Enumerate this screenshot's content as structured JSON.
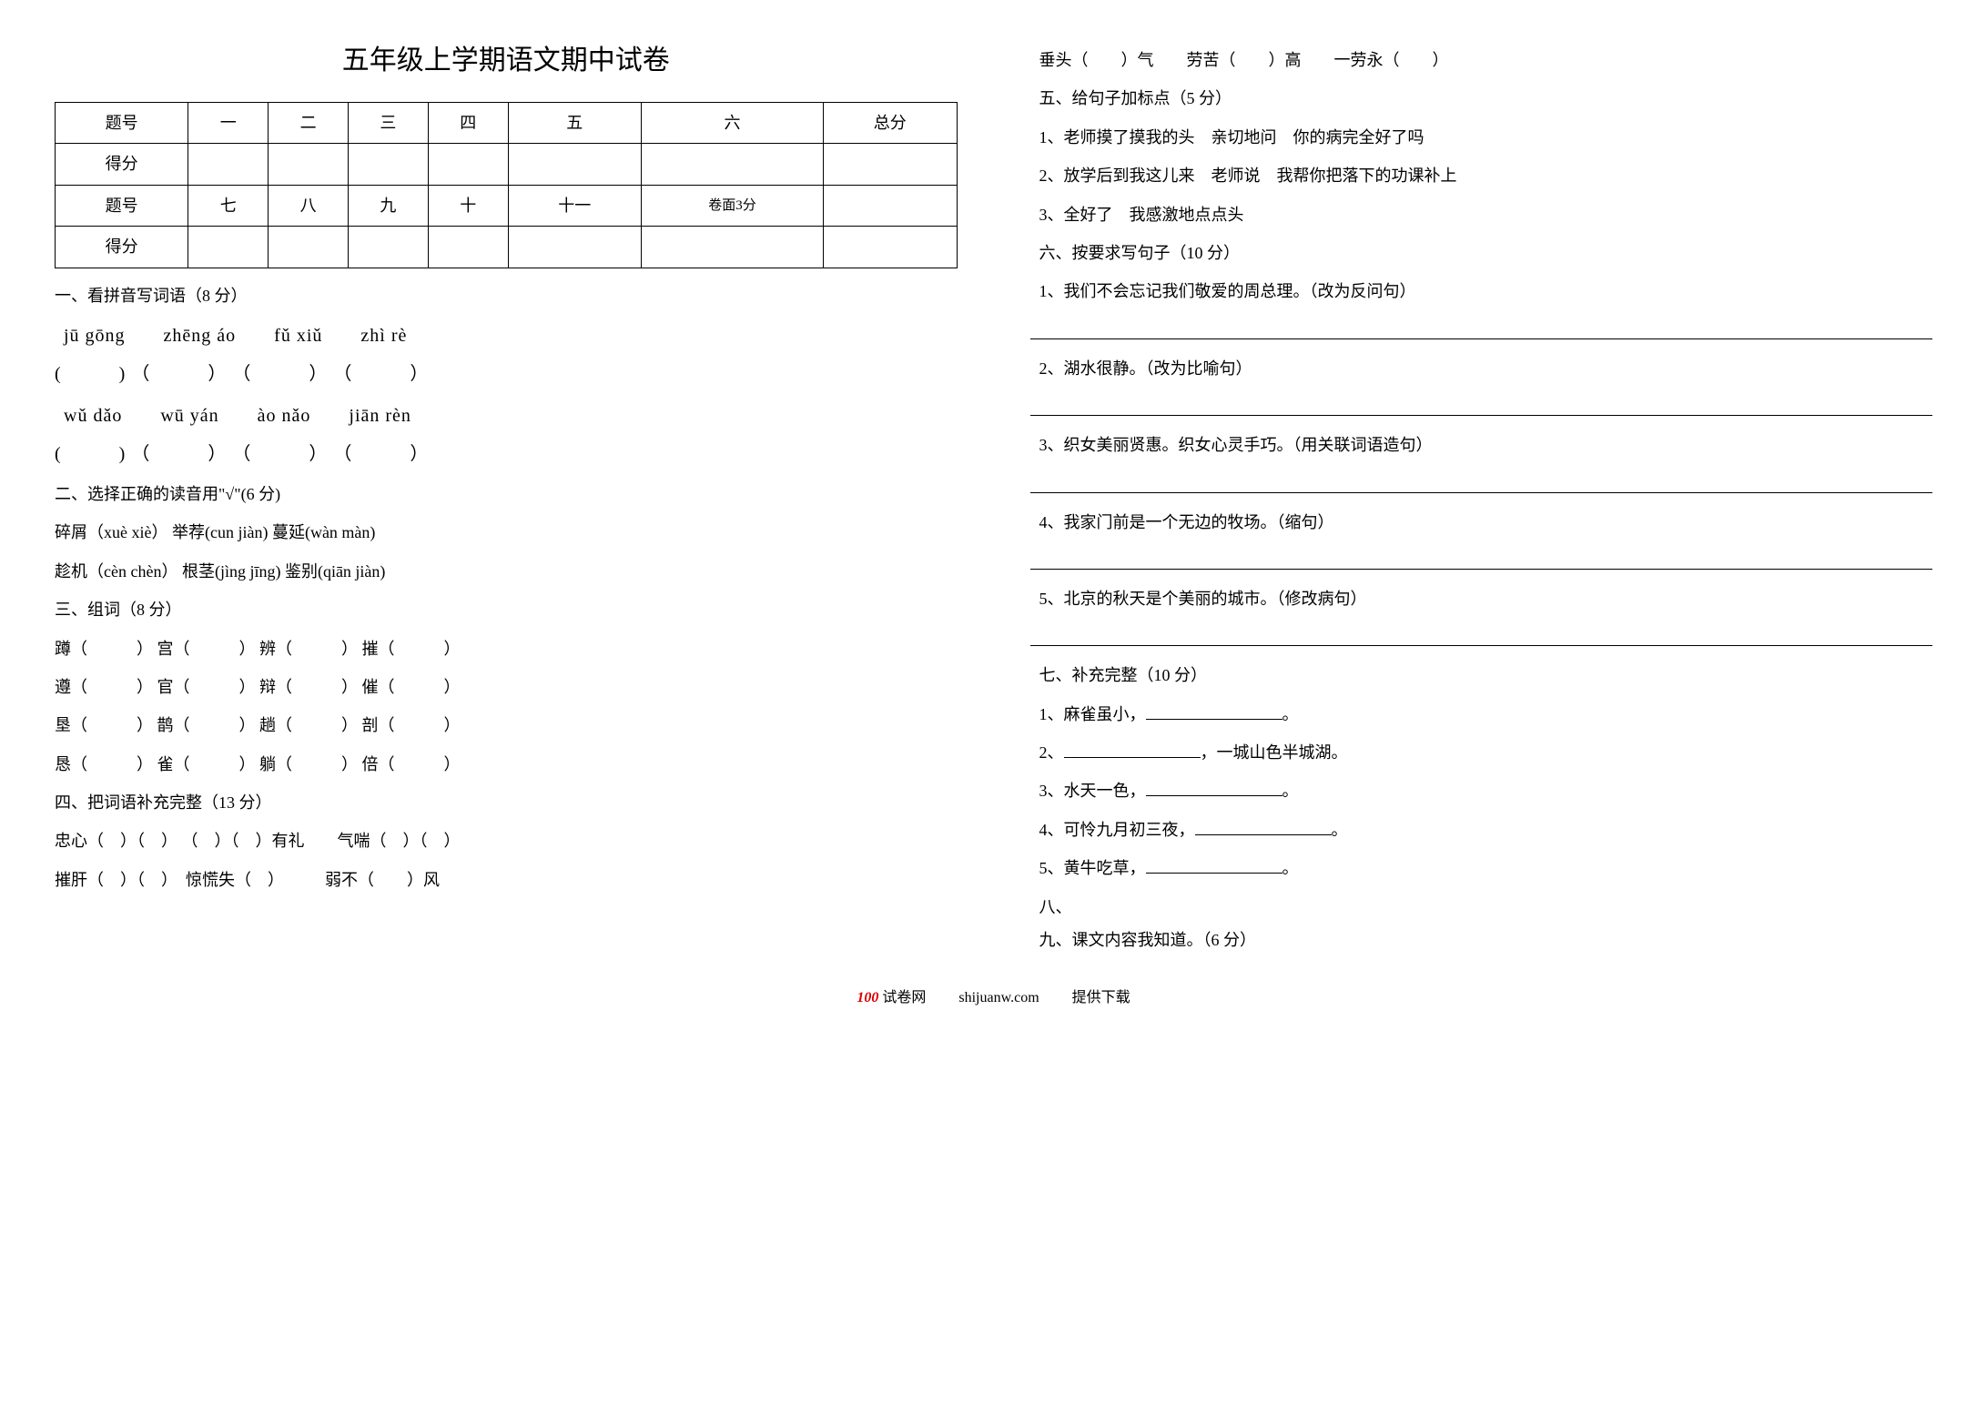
{
  "title": "五年级上学期语文期中试卷",
  "score_table": {
    "row1": {
      "label": "题号",
      "cells": [
        "一",
        "二",
        "三",
        "四",
        "五",
        "六",
        "总分"
      ]
    },
    "row2": {
      "label": "得分"
    },
    "row3": {
      "label": "题号",
      "cells": [
        "七",
        "八",
        "九",
        "十",
        "十一",
        "卷面3分",
        ""
      ]
    },
    "row4": {
      "label": "得分"
    }
  },
  "s1": {
    "heading": "一、看拼音写词语（8 分）",
    "pinyin1": "jū gōng　　zhēng áo　　fǔ xiǔ　　zhì rè",
    "parens1": "(　　　) （　　　） （　　　） （　　　）",
    "pinyin2": "wǔ dǎo　　wū yán　　ào nǎo　　jiān rèn",
    "parens2": "(　　　) （　　　） （　　　） （　　　）"
  },
  "s2": {
    "heading": "二、选择正确的读音用\"√\"(6 分)",
    "line1": "碎屑（xuè xiè）  举荐(cun jiàn)  蔓延(wàn màn)",
    "line2": "趁机（cèn chèn） 根茎(jìng jīng) 鉴别(qiān jiàn)"
  },
  "s3": {
    "heading": "三、组词（8 分）",
    "line1": "蹲（　　　） 宫（　　　） 辨（　　　） 摧（　　　）",
    "line2": "遵（　　　） 官（　　　） 辩（　　　） 催（　　　）",
    "line3": "垦（　　　） 鹊（　　　） 趟（　　　） 剖（　　　）",
    "line4": "恳（　　　） 雀（　　　） 躺（　　　） 倍（　　　）"
  },
  "s4": {
    "heading": "四、把词语补充完整（13 分）",
    "line1": "忠心（　）（　） （　）（　）有礼　　气喘（　）（　）",
    "line2": "摧肝（　）（　）　惊慌失（　）　　　弱不（　　）风",
    "line3": "垂头（　　）气　　劳苦（　　）高　　一劳永（　　）"
  },
  "s5": {
    "heading": "五、给句子加标点（5 分）",
    "q1": "1、老师摸了摸我的头　亲切地问　你的病完全好了吗",
    "q2": "2、放学后到我这儿来　老师说　我帮你把落下的功课补上",
    "q3": "3、全好了　我感激地点点头"
  },
  "s6": {
    "heading": "六、按要求写句子（10 分）",
    "q1": "1、我们不会忘记我们敬爱的周总理。（改为反问句）",
    "q2": "2、湖水很静。（改为比喻句）",
    "q3": "3、织女美丽贤惠。织女心灵手巧。（用关联词语造句）",
    "q4": "4、我家门前是一个无边的牧场。（缩句）",
    "q5": "5、北京的秋天是个美丽的城市。（修改病句）"
  },
  "s7": {
    "heading": "七、补充完整（10 分）",
    "q1a": "1、麻雀虽小，",
    "q1b": "。",
    "q2a": "2、",
    "q2b": "，一城山色半城湖。",
    "q3a": "3、水天一色，",
    "q3b": "。",
    "q4a": "4、可怜九月初三夜，",
    "q4b": "。",
    "q5a": "5、黄牛吃草，",
    "q5b": "。"
  },
  "s8": {
    "heading": "八、"
  },
  "s9": {
    "heading": "九、课文内容我知道。（6 分）"
  },
  "footer": {
    "brand": "100",
    "site_label": "试卷网",
    "url": "shijuanw.com",
    "tail": "提供下载"
  }
}
